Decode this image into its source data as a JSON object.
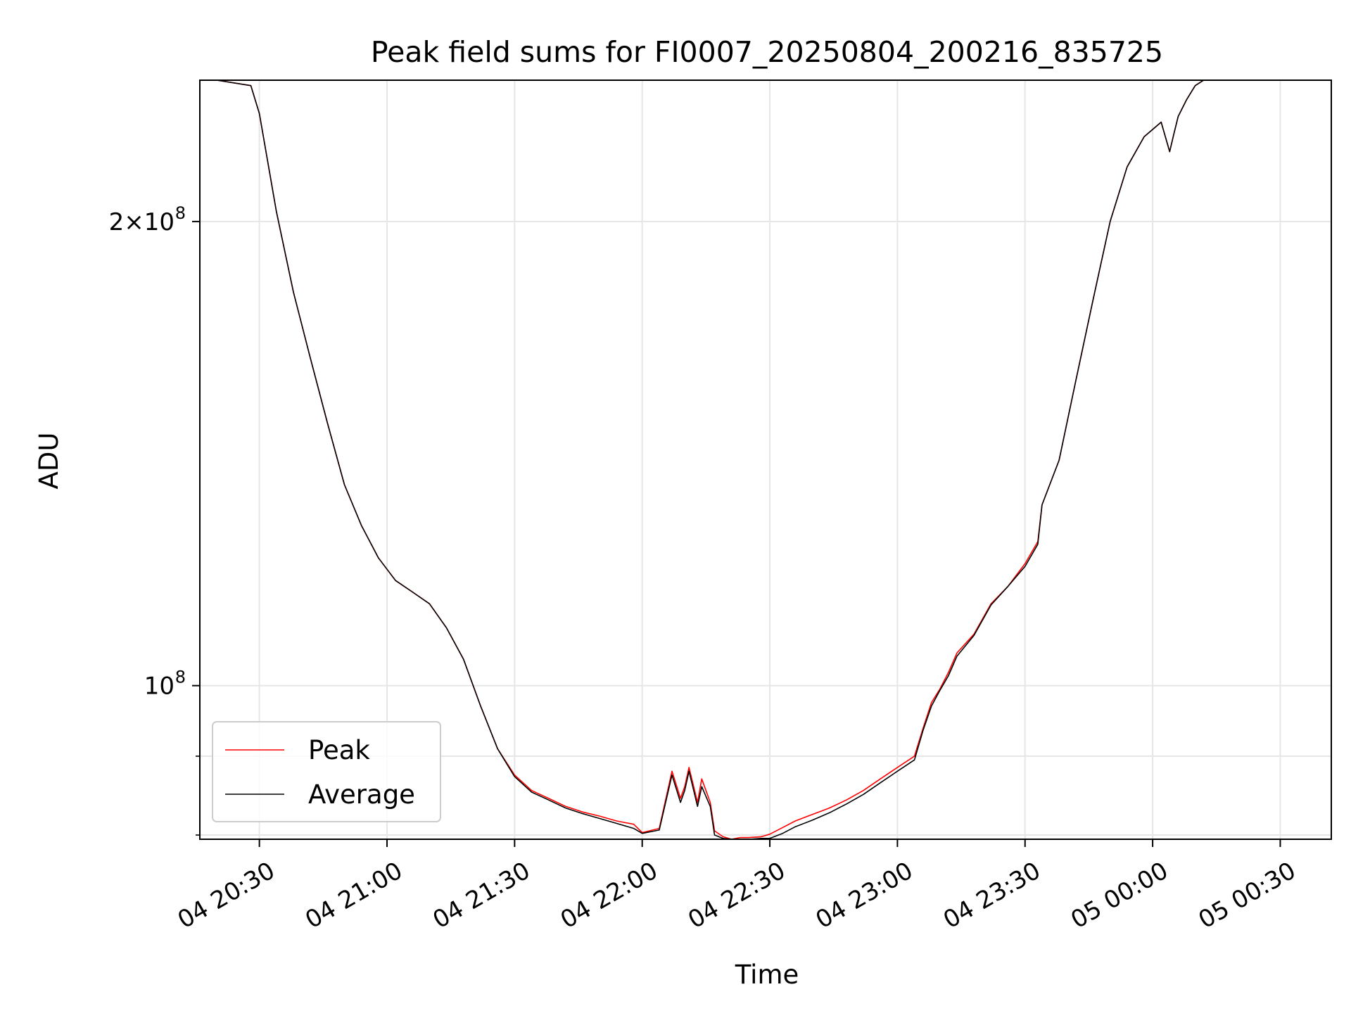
{
  "chart_data": {
    "type": "line",
    "title": "Peak field sums for FI0007_20250804_200216_835725",
    "xlabel": "Time",
    "ylabel": "ADU",
    "x_scale": "time",
    "y_scale": "log",
    "xlim": [
      "2025-08-04 20:16",
      "2025-08-05 00:42"
    ],
    "ylim": [
      79500000,
      247000000
    ],
    "x_ticks": [
      "04 20:30",
      "04 21:00",
      "04 21:30",
      "04 22:00",
      "04 22:30",
      "04 23:00",
      "04 23:30",
      "05 00:00",
      "05 00:30"
    ],
    "y_ticks": [
      {
        "value": 200000000,
        "label_base": "2×10",
        "label_exp": "8"
      },
      {
        "value": 100000000,
        "label_base": "10",
        "label_exp": "8"
      }
    ],
    "y_minor_ticks": [
      90000000,
      80000000
    ],
    "grid": true,
    "legend": {
      "placement": "lower-left"
    },
    "series": [
      {
        "name": "Peak",
        "color": "#ff0000",
        "x": [
          "2025-08-04 20:20",
          "2025-08-04 20:28",
          "2025-08-04 20:30",
          "2025-08-04 20:34",
          "2025-08-04 20:38",
          "2025-08-04 20:42",
          "2025-08-04 20:46",
          "2025-08-04 20:50",
          "2025-08-04 20:54",
          "2025-08-04 20:58",
          "2025-08-04 21:02",
          "2025-08-04 21:06",
          "2025-08-04 21:10",
          "2025-08-04 21:14",
          "2025-08-04 21:18",
          "2025-08-04 21:22",
          "2025-08-04 21:26",
          "2025-08-04 21:30",
          "2025-08-04 21:34",
          "2025-08-04 21:38",
          "2025-08-04 21:42",
          "2025-08-04 21:46",
          "2025-08-04 21:50",
          "2025-08-04 21:54",
          "2025-08-04 21:58",
          "2025-08-04 22:00",
          "2025-08-04 22:04",
          "2025-08-04 22:07",
          "2025-08-04 22:09",
          "2025-08-04 22:10",
          "2025-08-04 22:11",
          "2025-08-04 22:13",
          "2025-08-04 22:14",
          "2025-08-04 22:16",
          "2025-08-04 22:17",
          "2025-08-04 22:19",
          "2025-08-04 22:21",
          "2025-08-04 22:23",
          "2025-08-04 22:25",
          "2025-08-04 22:28",
          "2025-08-04 22:30",
          "2025-08-04 22:33",
          "2025-08-04 22:36",
          "2025-08-04 22:40",
          "2025-08-04 22:44",
          "2025-08-04 22:48",
          "2025-08-04 22:52",
          "2025-08-04 22:56",
          "2025-08-04 23:00",
          "2025-08-04 23:04",
          "2025-08-04 23:06",
          "2025-08-04 23:08",
          "2025-08-04 23:10",
          "2025-08-04 23:12",
          "2025-08-04 23:14",
          "2025-08-04 23:18",
          "2025-08-04 23:22",
          "2025-08-04 23:26",
          "2025-08-04 23:30",
          "2025-08-04 23:33",
          "2025-08-04 23:34",
          "2025-08-04 23:38",
          "2025-08-04 23:42",
          "2025-08-04 23:46",
          "2025-08-04 23:50",
          "2025-08-04 23:54",
          "2025-08-04 23:58",
          "2025-08-05 00:02",
          "2025-08-05 00:04",
          "2025-08-05 00:05",
          "2025-08-05 00:06",
          "2025-08-05 00:08",
          "2025-08-05 00:10",
          "2025-08-05 00:12",
          "2025-08-05 00:14"
        ],
        "y": [
          247000000,
          245000000,
          235000000,
          203000000,
          180000000,
          163000000,
          148000000,
          135000000,
          127000000,
          121000000,
          117000000,
          115000000,
          113000000,
          109000000,
          104000000,
          97000000,
          91000000,
          87500000,
          85500000,
          84500000,
          83500000,
          82800000,
          82300000,
          81700000,
          81300000,
          80300000,
          80800000,
          88000000,
          84500000,
          86000000,
          88500000,
          84000000,
          87000000,
          84000000,
          80500000,
          79800000,
          79500000,
          79700000,
          79700000,
          79800000,
          80100000,
          80900000,
          81700000,
          82500000,
          83300000,
          84300000,
          85500000,
          87000000,
          88500000,
          90000000,
          93800000,
          97500000,
          99500000,
          102000000,
          105000000,
          108000000,
          113000000,
          116000000,
          120000000,
          124000000,
          131000000,
          140000000,
          158000000,
          178000000,
          200000000,
          217000000,
          227000000,
          232000000,
          222000000,
          228000000,
          234000000,
          240000000,
          245000000,
          247000000,
          247000000
        ]
      },
      {
        "name": "Average",
        "color": "#000000",
        "x": [
          "2025-08-04 20:20",
          "2025-08-04 20:28",
          "2025-08-04 20:30",
          "2025-08-04 20:34",
          "2025-08-04 20:38",
          "2025-08-04 20:42",
          "2025-08-04 20:46",
          "2025-08-04 20:50",
          "2025-08-04 20:54",
          "2025-08-04 20:58",
          "2025-08-04 21:02",
          "2025-08-04 21:06",
          "2025-08-04 21:10",
          "2025-08-04 21:14",
          "2025-08-04 21:18",
          "2025-08-04 21:22",
          "2025-08-04 21:26",
          "2025-08-04 21:30",
          "2025-08-04 21:34",
          "2025-08-04 21:38",
          "2025-08-04 21:42",
          "2025-08-04 21:46",
          "2025-08-04 21:50",
          "2025-08-04 21:54",
          "2025-08-04 21:58",
          "2025-08-04 22:00",
          "2025-08-04 22:04",
          "2025-08-04 22:07",
          "2025-08-04 22:09",
          "2025-08-04 22:10",
          "2025-08-04 22:11",
          "2025-08-04 22:13",
          "2025-08-04 22:14",
          "2025-08-04 22:16",
          "2025-08-04 22:17",
          "2025-08-04 22:19",
          "2025-08-04 22:21",
          "2025-08-04 22:23",
          "2025-08-04 22:25",
          "2025-08-04 22:28",
          "2025-08-04 22:30",
          "2025-08-04 22:33",
          "2025-08-04 22:36",
          "2025-08-04 22:40",
          "2025-08-04 22:44",
          "2025-08-04 22:48",
          "2025-08-04 22:52",
          "2025-08-04 22:56",
          "2025-08-04 23:00",
          "2025-08-04 23:04",
          "2025-08-04 23:06",
          "2025-08-04 23:08",
          "2025-08-04 23:10",
          "2025-08-04 23:12",
          "2025-08-04 23:14",
          "2025-08-04 23:18",
          "2025-08-04 23:22",
          "2025-08-04 23:26",
          "2025-08-04 23:30",
          "2025-08-04 23:33",
          "2025-08-04 23:34",
          "2025-08-04 23:38",
          "2025-08-04 23:42",
          "2025-08-04 23:46",
          "2025-08-04 23:50",
          "2025-08-04 23:54",
          "2025-08-04 23:58",
          "2025-08-05 00:02",
          "2025-08-05 00:04",
          "2025-08-05 00:05",
          "2025-08-05 00:06",
          "2025-08-05 00:08",
          "2025-08-05 00:10",
          "2025-08-05 00:12",
          "2025-08-05 00:14"
        ],
        "y": [
          247000000,
          245000000,
          235000000,
          203000000,
          180000000,
          163000000,
          148000000,
          135000000,
          127000000,
          121000000,
          117000000,
          115000000,
          113000000,
          109000000,
          104000000,
          97000000,
          91000000,
          87300000,
          85300000,
          84300000,
          83300000,
          82600000,
          82000000,
          81400000,
          80800000,
          80200000,
          80600000,
          87500000,
          84000000,
          85500000,
          88000000,
          83500000,
          86000000,
          83500000,
          80000000,
          79600000,
          79500000,
          79500000,
          79500000,
          79600000,
          79600000,
          80200000,
          81000000,
          81800000,
          82700000,
          83800000,
          85000000,
          86500000,
          88000000,
          89500000,
          93500000,
          97000000,
          99300000,
          101500000,
          104500000,
          107800000,
          112800000,
          116000000,
          119500000,
          123500000,
          131000000,
          140000000,
          158000000,
          178000000,
          200000000,
          217000000,
          227000000,
          232000000,
          222000000,
          228000000,
          234000000,
          240000000,
          245000000,
          247000000,
          247000000
        ]
      }
    ]
  }
}
